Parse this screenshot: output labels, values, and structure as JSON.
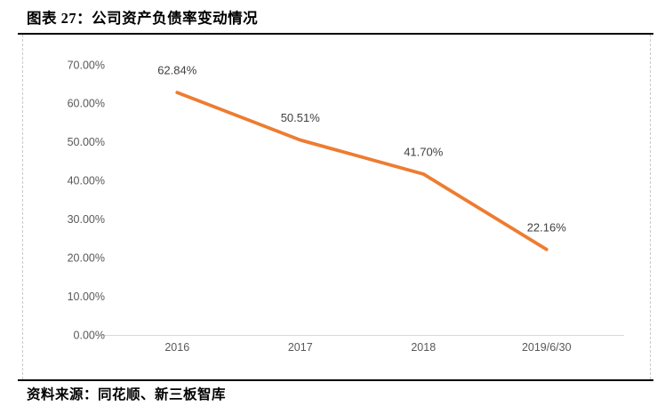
{
  "header": {
    "title": "图表 27：公司资产负债率变动情况"
  },
  "footer": {
    "source": "资料来源：同花顺、新三板智库"
  },
  "colors": {
    "line": "#ED7C31",
    "axis_line": "#D9D9D9",
    "tick_text": "#595959",
    "data_label_text": "#404040",
    "frame_rule": "#000000",
    "frame_dash": "#C9C9C9"
  },
  "chart_data": {
    "type": "line",
    "title": "公司资产负债率变动情况",
    "categories": [
      "2016",
      "2017",
      "2018",
      "2019/6/30"
    ],
    "values": [
      62.84,
      50.51,
      41.7,
      22.16
    ],
    "data_labels": [
      "62.84%",
      "50.51%",
      "41.70%",
      "22.16%"
    ],
    "y_ticks": [
      "70.00%",
      "60.00%",
      "50.00%",
      "40.00%",
      "30.00%",
      "20.00%",
      "10.00%",
      "0.00%"
    ],
    "ylim": [
      0,
      70
    ],
    "y_step": 10,
    "xlabel": "",
    "ylabel": "",
    "grid": false,
    "legend": "none"
  }
}
